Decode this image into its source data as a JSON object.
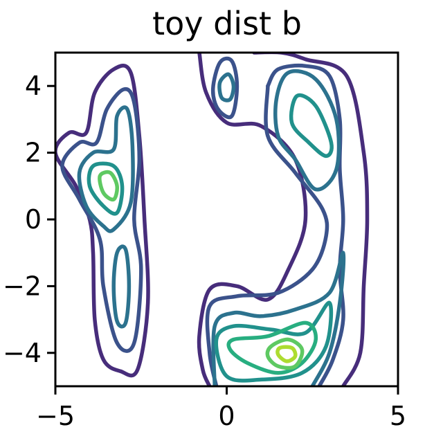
{
  "chart_data": {
    "type": "contour",
    "title": "toy dist b",
    "xlabel": "",
    "ylabel": "",
    "xlim": [
      -5,
      5
    ],
    "ylim": [
      -5,
      5
    ],
    "x_ticks": [
      {
        "value": -5,
        "label": "−5"
      },
      {
        "value": 0,
        "label": "0"
      },
      {
        "value": 5,
        "label": "5"
      }
    ],
    "y_ticks": [
      {
        "value": -4,
        "label": "−4"
      },
      {
        "value": -2,
        "label": "−2"
      },
      {
        "value": 0,
        "label": "0"
      },
      {
        "value": 2,
        "label": "2"
      },
      {
        "value": 4,
        "label": "4"
      }
    ],
    "grid": false,
    "legend": "none",
    "colormap": "viridis",
    "levels": [
      {
        "color": "#472d7b"
      },
      {
        "color": "#3b528b"
      },
      {
        "color": "#2c728e"
      },
      {
        "color": "#21918c"
      },
      {
        "color": "#28ae80"
      },
      {
        "color": "#5ec962"
      },
      {
        "color": "#addc30"
      }
    ],
    "contours": [
      {
        "level": 0,
        "closed": true,
        "points": [
          [
            -2.6,
            -4.5
          ],
          [
            -3.1,
            -4.55
          ],
          [
            -3.6,
            -4.2
          ],
          [
            -3.85,
            -3.0
          ],
          [
            -3.9,
            -1.0
          ],
          [
            -4.0,
            0.0
          ],
          [
            -4.4,
            1.0
          ],
          [
            -5.0,
            2.0
          ],
          [
            -4.6,
            2.6
          ],
          [
            -4.1,
            2.6
          ],
          [
            -3.85,
            3.8
          ],
          [
            -3.3,
            4.5
          ],
          [
            -2.8,
            4.4
          ],
          [
            -2.55,
            2.5
          ],
          [
            -2.4,
            0.0
          ],
          [
            -2.3,
            -2.5
          ]
        ]
      },
      {
        "level": 1,
        "closed": true,
        "points": [
          [
            -2.7,
            -3.7
          ],
          [
            -3.2,
            -3.7
          ],
          [
            -3.6,
            -2.0
          ],
          [
            -3.7,
            -0.6
          ],
          [
            -4.3,
            0.6
          ],
          [
            -4.8,
            1.6
          ],
          [
            -4.3,
            2.3
          ],
          [
            -3.8,
            2.3
          ],
          [
            -3.5,
            3.3
          ],
          [
            -3.0,
            3.9
          ],
          [
            -2.7,
            3.5
          ],
          [
            -2.55,
            1.8
          ],
          [
            -2.7,
            0.0
          ],
          [
            -2.5,
            -1.5
          ]
        ]
      },
      {
        "level": 2,
        "closed": true,
        "points": [
          [
            -3.3,
            -0.3
          ],
          [
            -3.6,
            -0.2
          ],
          [
            -4.1,
            0.4
          ],
          [
            -4.3,
            1.4
          ],
          [
            -3.9,
            2.0
          ],
          [
            -3.3,
            2.1
          ],
          [
            -3.2,
            3.1
          ],
          [
            -2.9,
            3.3
          ],
          [
            -2.75,
            2.2
          ],
          [
            -2.8,
            0.5
          ]
        ]
      },
      {
        "level": 2,
        "closed": true,
        "points": [
          [
            -2.95,
            -3.1
          ],
          [
            -3.2,
            -3.05
          ],
          [
            -3.3,
            -2.0
          ],
          [
            -3.2,
            -1.0
          ],
          [
            -2.95,
            -0.9
          ],
          [
            -2.85,
            -2.0
          ]
        ]
      },
      {
        "level": 3,
        "closed": true,
        "points": [
          [
            -3.2,
            0.2
          ],
          [
            -3.6,
            0.4
          ],
          [
            -4.0,
            1.0
          ],
          [
            -3.9,
            1.6
          ],
          [
            -3.3,
            1.6
          ],
          [
            -3.05,
            1.0
          ]
        ]
      },
      {
        "level": 5,
        "closed": true,
        "points": [
          [
            -3.3,
            0.6
          ],
          [
            -3.6,
            0.8
          ],
          [
            -3.7,
            1.3
          ],
          [
            -3.4,
            1.4
          ],
          [
            -3.2,
            1.0
          ]
        ]
      },
      {
        "level": 0,
        "closed": false,
        "points": [
          [
            -0.8,
            5.0
          ],
          [
            -0.6,
            3.8
          ],
          [
            0.0,
            2.9
          ],
          [
            1.0,
            2.8
          ],
          [
            2.0,
            1.8
          ],
          [
            2.3,
            0.0
          ],
          [
            1.8,
            -1.5
          ],
          [
            1.2,
            -2.4
          ],
          [
            0.3,
            -2.0
          ],
          [
            -0.5,
            -2.1
          ],
          [
            -0.8,
            -3.5
          ],
          [
            -0.7,
            -4.5
          ],
          [
            -0.5,
            -5.0
          ]
        ]
      },
      {
        "level": 0,
        "closed": false,
        "points": [
          [
            0.8,
            5.0
          ],
          [
            1.6,
            5.0
          ],
          [
            2.3,
            4.8
          ],
          [
            3.5,
            4.3
          ],
          [
            4.0,
            2.0
          ],
          [
            4.1,
            0.0
          ],
          [
            4.0,
            -2.0
          ],
          [
            3.9,
            -4.0
          ],
          [
            3.4,
            -5.0
          ]
        ]
      },
      {
        "level": 1,
        "closed": true,
        "points": [
          [
            0.15,
            3.1
          ],
          [
            -0.25,
            3.3
          ],
          [
            -0.4,
            3.9
          ],
          [
            -0.2,
            4.7
          ],
          [
            0.15,
            4.75
          ],
          [
            0.3,
            4.0
          ]
        ]
      },
      {
        "level": 2,
        "closed": true,
        "points": [
          [
            0.1,
            3.6
          ],
          [
            -0.15,
            3.65
          ],
          [
            -0.2,
            4.1
          ],
          [
            0.05,
            4.35
          ],
          [
            0.2,
            4.0
          ]
        ]
      },
      {
        "level": 1,
        "closed": false,
        "points": [
          [
            1.2,
            4.0
          ],
          [
            1.5,
            4.5
          ],
          [
            2.3,
            4.6
          ],
          [
            3.0,
            4.3
          ],
          [
            3.3,
            3.0
          ],
          [
            3.3,
            1.5
          ],
          [
            3.4,
            0.0
          ],
          [
            3.3,
            -1.5
          ],
          [
            3.4,
            -3.0
          ],
          [
            3.1,
            -4.2
          ],
          [
            2.7,
            -5.0
          ]
        ]
      },
      {
        "level": 1,
        "closed": false,
        "points": [
          [
            1.2,
            4.0
          ],
          [
            1.2,
            2.5
          ],
          [
            2.0,
            1.4
          ],
          [
            2.8,
            0.3
          ],
          [
            2.9,
            -0.5
          ],
          [
            2.5,
            -1.5
          ],
          [
            1.5,
            -2.2
          ],
          [
            0.3,
            -2.3
          ],
          [
            -0.5,
            -2.6
          ],
          [
            -0.5,
            -4.0
          ],
          [
            -0.3,
            -5.0
          ]
        ]
      },
      {
        "level": 2,
        "closed": true,
        "points": [
          [
            2.6,
            0.9
          ],
          [
            2.0,
            1.8
          ],
          [
            1.5,
            2.5
          ],
          [
            1.45,
            3.6
          ],
          [
            1.8,
            4.4
          ],
          [
            2.6,
            4.2
          ],
          [
            3.2,
            3.0
          ],
          [
            3.2,
            1.5
          ]
        ]
      },
      {
        "level": 2,
        "closed": false,
        "points": [
          [
            -0.35,
            -5.0
          ],
          [
            -0.35,
            -3.2
          ],
          [
            0.2,
            -2.8
          ],
          [
            1.0,
            -2.9
          ],
          [
            2.0,
            -2.7
          ],
          [
            3.0,
            -2.2
          ],
          [
            3.4,
            -1.0
          ],
          [
            3.3,
            -2.5
          ],
          [
            3.0,
            -4.0
          ],
          [
            2.5,
            -5.0
          ]
        ]
      },
      {
        "level": 3,
        "closed": true,
        "points": [
          [
            2.9,
            1.9
          ],
          [
            2.4,
            2.3
          ],
          [
            1.9,
            2.9
          ],
          [
            2.05,
            3.7
          ],
          [
            2.6,
            3.4
          ],
          [
            3.05,
            2.3
          ]
        ]
      },
      {
        "level": 3,
        "closed": true,
        "points": [
          [
            -0.3,
            -3.6
          ],
          [
            0.2,
            -3.2
          ],
          [
            1.3,
            -3.3
          ],
          [
            2.3,
            -3.4
          ],
          [
            3.0,
            -2.5
          ],
          [
            2.9,
            -3.8
          ],
          [
            2.2,
            -4.6
          ],
          [
            1.0,
            -4.8
          ],
          [
            0.0,
            -4.7
          ]
        ]
      },
      {
        "level": 4,
        "closed": true,
        "points": [
          [
            0.2,
            -3.6
          ],
          [
            1.2,
            -3.5
          ],
          [
            2.3,
            -3.1
          ],
          [
            2.6,
            -3.6
          ],
          [
            2.2,
            -4.3
          ],
          [
            1.5,
            -4.6
          ],
          [
            0.6,
            -4.3
          ],
          [
            0.1,
            -3.9
          ]
        ]
      },
      {
        "level": 5,
        "closed": true,
        "points": [
          [
            1.3,
            -3.8
          ],
          [
            1.8,
            -3.6
          ],
          [
            2.2,
            -3.9
          ],
          [
            2.0,
            -4.4
          ],
          [
            1.5,
            -4.4
          ],
          [
            1.2,
            -4.1
          ]
        ]
      },
      {
        "level": 6,
        "closed": true,
        "points": [
          [
            1.55,
            -3.85
          ],
          [
            1.9,
            -3.85
          ],
          [
            2.0,
            -4.1
          ],
          [
            1.75,
            -4.25
          ],
          [
            1.5,
            -4.05
          ]
        ]
      }
    ]
  }
}
